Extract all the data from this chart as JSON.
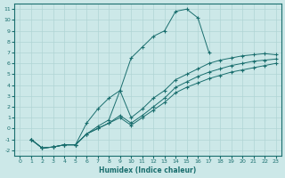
{
  "xlabel": "Humidex (Indice chaleur)",
  "bg_color": "#cce8e8",
  "grid_color": "#b0d4d4",
  "line_color": "#1a6e6e",
  "xlim": [
    -0.5,
    23.5
  ],
  "ylim": [
    -2.5,
    11.5
  ],
  "xticks": [
    0,
    1,
    2,
    3,
    4,
    5,
    6,
    7,
    8,
    9,
    10,
    11,
    12,
    13,
    14,
    15,
    16,
    17,
    18,
    19,
    20,
    21,
    22,
    23
  ],
  "yticks": [
    -2,
    -1,
    0,
    1,
    2,
    3,
    4,
    5,
    6,
    7,
    8,
    9,
    10,
    11
  ],
  "line1_x": [
    1,
    2,
    3,
    4,
    5,
    6,
    7,
    8,
    9,
    10,
    11,
    12,
    13,
    14,
    15,
    16,
    17
  ],
  "line1_y": [
    -1,
    -1.8,
    -1.7,
    -1.5,
    -1.5,
    0.5,
    1.8,
    2.8,
    3.5,
    6.5,
    7.5,
    8.5,
    9.0,
    10.8,
    11.0,
    10.2,
    7.0
  ],
  "line2_x": [
    1,
    2,
    3,
    4,
    5,
    6,
    7,
    8,
    9,
    10,
    11,
    12,
    13,
    14,
    15,
    16,
    17,
    18,
    19,
    20,
    21,
    22,
    23
  ],
  "line2_y": [
    -1,
    -1.8,
    -1.7,
    -1.5,
    -1.5,
    -0.5,
    0.2,
    0.8,
    3.5,
    1.0,
    1.8,
    2.8,
    3.5,
    4.5,
    5.0,
    5.5,
    6.0,
    6.3,
    6.5,
    6.7,
    6.8,
    6.9,
    6.8
  ],
  "line3_x": [
    1,
    2,
    3,
    4,
    5,
    6,
    7,
    8,
    9,
    10,
    11,
    12,
    13,
    14,
    15,
    16,
    17,
    18,
    19,
    20,
    21,
    22,
    23
  ],
  "line3_y": [
    -1,
    -1.8,
    -1.7,
    -1.5,
    -1.5,
    -0.5,
    0.0,
    0.5,
    1.2,
    0.5,
    1.2,
    2.0,
    2.8,
    3.8,
    4.3,
    4.8,
    5.2,
    5.5,
    5.8,
    6.0,
    6.2,
    6.3,
    6.4
  ],
  "line4_x": [
    1,
    2,
    3,
    4,
    5,
    6,
    7,
    8,
    9,
    10,
    11,
    12,
    13,
    14,
    15,
    16,
    17,
    18,
    19,
    20,
    21,
    22,
    23
  ],
  "line4_y": [
    -1,
    -1.8,
    -1.7,
    -1.5,
    -1.5,
    -0.5,
    0.0,
    0.5,
    1.0,
    0.3,
    1.0,
    1.7,
    2.4,
    3.3,
    3.8,
    4.2,
    4.6,
    4.9,
    5.2,
    5.4,
    5.6,
    5.8,
    6.0
  ]
}
